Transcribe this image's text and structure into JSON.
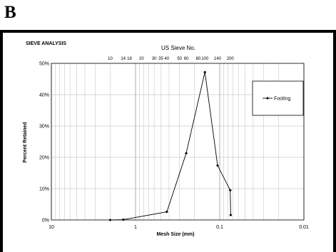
{
  "panel_label": "B",
  "chart_data": {
    "type": "line",
    "title": "SIEVE ANALYSIS",
    "xlabel": "Mesh Size (mm)",
    "ylabel": "Percent Retained",
    "top_axis_label": "US Sieve No.",
    "x_scale": "log",
    "x_reversed": true,
    "xlim": [
      10,
      0.01
    ],
    "ylim": [
      0,
      50
    ],
    "grid": true,
    "legend_position": "top-right",
    "x_ticks": [
      {
        "value": 10,
        "label": "10"
      },
      {
        "value": 1,
        "label": "1"
      },
      {
        "value": 0.1,
        "label": "0.1"
      },
      {
        "value": 0.01,
        "label": "0.01"
      }
    ],
    "y_ticks": [
      {
        "value": 0,
        "label": "0%"
      },
      {
        "value": 10,
        "label": "10%"
      },
      {
        "value": 20,
        "label": "20%"
      },
      {
        "value": 30,
        "label": "30%"
      },
      {
        "value": 40,
        "label": "40%"
      },
      {
        "value": 50,
        "label": "50%"
      }
    ],
    "sieve_ticks": [
      {
        "label": "10",
        "size": 2.0
      },
      {
        "label": "14",
        "size": 1.4
      },
      {
        "label": "16",
        "size": 1.18
      },
      {
        "label": "20",
        "size": 0.85
      },
      {
        "label": "30",
        "size": 0.6
      },
      {
        "label": "35",
        "size": 0.5
      },
      {
        "label": "40",
        "size": 0.425
      },
      {
        "label": "50",
        "size": 0.3
      },
      {
        "label": "60",
        "size": 0.25
      },
      {
        "label": "80",
        "size": 0.18
      },
      {
        "label": "100",
        "size": 0.15
      },
      {
        "label": "140",
        "size": 0.106
      },
      {
        "label": "200",
        "size": 0.075
      }
    ],
    "series": [
      {
        "name": "Footing",
        "color": "#000000",
        "marker": "diamond",
        "x": [
          2.0,
          1.4,
          0.425,
          0.25,
          0.15,
          0.106,
          0.075,
          0.074
        ],
        "y": [
          0,
          0.1,
          2.6,
          21.3,
          47.2,
          17.4,
          9.5,
          1.6
        ]
      }
    ]
  }
}
